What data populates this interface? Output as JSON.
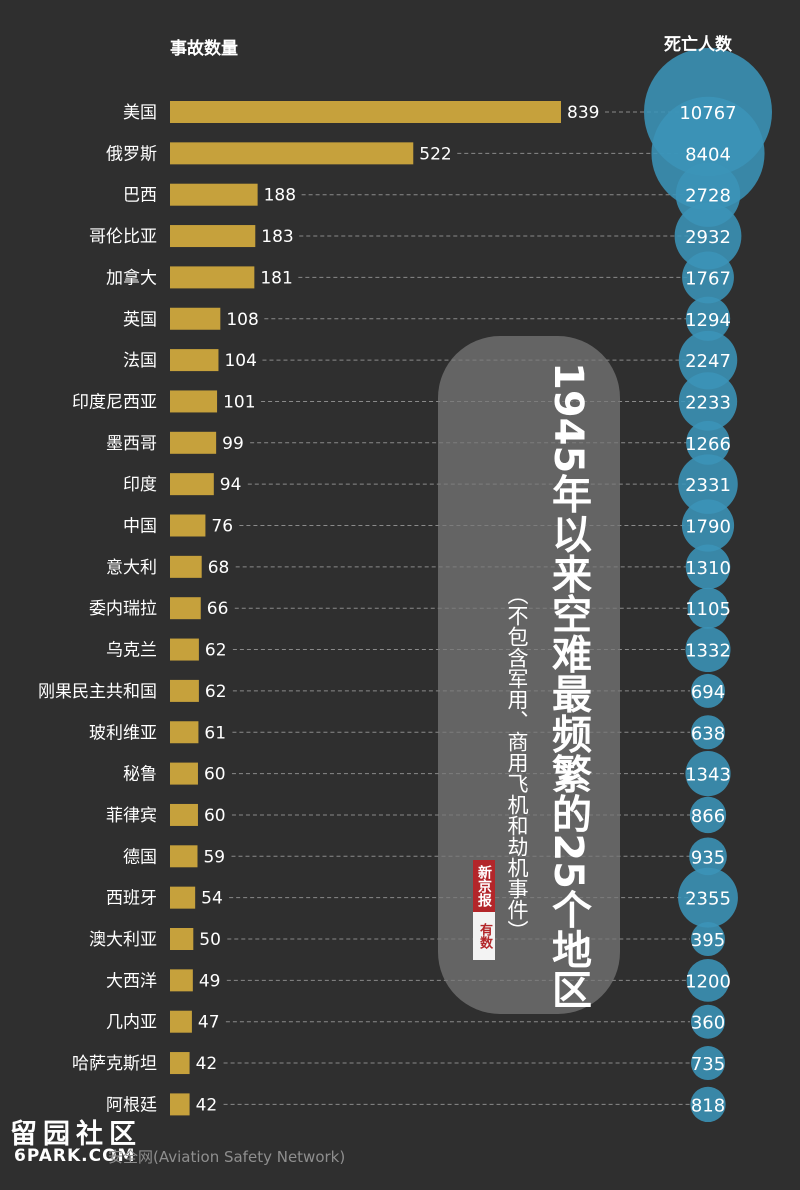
{
  "header": {
    "left_label": "事故数量",
    "right_label": "死亡人数"
  },
  "caption": {
    "title": "1945年以来空难最频繁的25个地区",
    "subtitle": "（不包含军用、商用飞机和劫机事件）"
  },
  "logo": {
    "top_text": "新京报",
    "bottom_text": "有数"
  },
  "watermark": {
    "line1": "留园社区",
    "line2": "6PARK.COM"
  },
  "source": "安全网(Aviation Safety Network)",
  "colors": {
    "background": "#2f2f2f",
    "bar": "#c6a13c",
    "bubble": "#3b94b8",
    "text": "#ffffff"
  },
  "chart_data": {
    "type": "bar",
    "orientation": "horizontal",
    "categories": [
      "美国",
      "俄罗斯",
      "巴西",
      "哥伦比亚",
      "加拿大",
      "英国",
      "法国",
      "印度尼西亚",
      "墨西哥",
      "印度",
      "中国",
      "意大利",
      "委内瑞拉",
      "乌克兰",
      "刚果民主共和国",
      "玻利维亚",
      "秘鲁",
      "菲律宾",
      "德国",
      "西班牙",
      "澳大利亚",
      "大西洋",
      "几内亚",
      "哈萨克斯坦",
      "阿根廷"
    ],
    "series": [
      {
        "name": "事故数量",
        "values": [
          839,
          522,
          188,
          183,
          181,
          108,
          104,
          101,
          99,
          94,
          76,
          68,
          66,
          62,
          62,
          61,
          60,
          60,
          59,
          54,
          50,
          49,
          47,
          42,
          42
        ]
      },
      {
        "name": "死亡人数",
        "values": [
          10767,
          8404,
          2728,
          2932,
          1767,
          1294,
          2247,
          2233,
          1266,
          2331,
          1790,
          1310,
          1105,
          1332,
          694,
          638,
          1343,
          866,
          935,
          2355,
          395,
          1200,
          360,
          735,
          818
        ]
      }
    ],
    "encoding": {
      "事故数量": "bar length",
      "死亡人数": "bubble area"
    },
    "grid": false
  }
}
